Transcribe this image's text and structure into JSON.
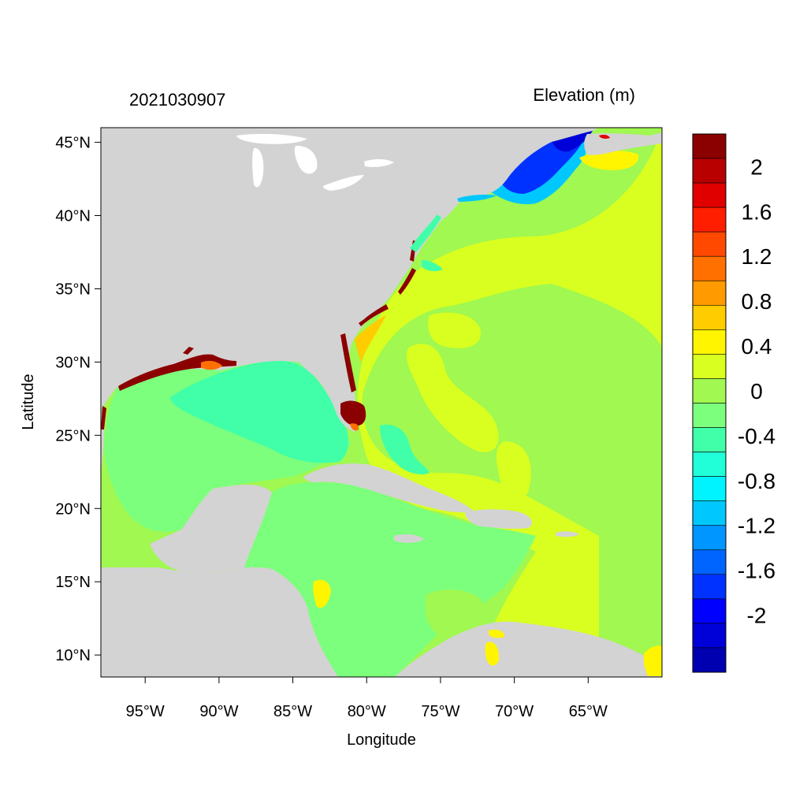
{
  "map": {
    "timestamp": "2021030907",
    "variable_title": "Elevation (m)",
    "x_axis_title": "Longitude",
    "y_axis_title": "Latitude",
    "lon_range": [
      -98,
      -60
    ],
    "lat_range": [
      8.5,
      46
    ],
    "lon_ticks": [
      {
        "value": -95,
        "label": "95°W"
      },
      {
        "value": -90,
        "label": "90°W"
      },
      {
        "value": -85,
        "label": "85°W"
      },
      {
        "value": -80,
        "label": "80°W"
      },
      {
        "value": -75,
        "label": "75°W"
      },
      {
        "value": -70,
        "label": "70°W"
      },
      {
        "value": -65,
        "label": "65°W"
      }
    ],
    "lat_ticks": [
      {
        "value": 45,
        "label": "45°N"
      },
      {
        "value": 40,
        "label": "40°N"
      },
      {
        "value": 35,
        "label": "35°N"
      },
      {
        "value": 30,
        "label": "30°N"
      },
      {
        "value": 25,
        "label": "25°N"
      },
      {
        "value": 20,
        "label": "20°N"
      },
      {
        "value": 15,
        "label": "15°N"
      },
      {
        "value": 10,
        "label": "10°N"
      }
    ],
    "land_color": "#d3d3d3",
    "ocean_base_color": "#a0f850",
    "colorbar": {
      "colors_top_to_bottom": [
        "#8b0000",
        "#b80000",
        "#e00000",
        "#ff1e00",
        "#ff4800",
        "#ff7000",
        "#ff9a00",
        "#ffcc00",
        "#fff500",
        "#d9ff20",
        "#a0f850",
        "#7cff7c",
        "#40ffa8",
        "#20ffd8",
        "#00f4ff",
        "#00c8ff",
        "#0096ff",
        "#0064ff",
        "#0032ff",
        "#0000ff",
        "#0000d8",
        "#0000b0"
      ],
      "labels": [
        {
          "value": 2,
          "text": "2"
        },
        {
          "value": 1.6,
          "text": "1.6"
        },
        {
          "value": 1.2,
          "text": "1.2"
        },
        {
          "value": 0.8,
          "text": "0.8"
        },
        {
          "value": 0.4,
          "text": "0.4"
        },
        {
          "value": 0,
          "text": "0"
        },
        {
          "value": -0.4,
          "text": "-0.4"
        },
        {
          "value": -0.8,
          "text": "-0.8"
        },
        {
          "value": -1.2,
          "text": "-1.2"
        },
        {
          "value": -1.6,
          "text": "-1.6"
        },
        {
          "value": -2,
          "text": "-2"
        }
      ]
    },
    "regions": [
      {
        "name": "gulf-of-mexico",
        "value": -0.2,
        "color": "#7cff7c"
      },
      {
        "name": "eastern-gulf-shelf",
        "value": -0.3,
        "color": "#40ffa8"
      },
      {
        "name": "caribbean-sea",
        "value": -0.1,
        "color": "#7cff7c"
      },
      {
        "name": "atlantic-offshore",
        "value": 0.1,
        "color": "#a0f850"
      },
      {
        "name": "atlantic-coastal-band",
        "value": 0.3,
        "color": "#d9ff20"
      },
      {
        "name": "gulf-of-maine",
        "value": -1.8,
        "color": "#0032ff"
      },
      {
        "name": "south-florida-surge",
        "value": 2.2,
        "color": "#8b0000"
      }
    ]
  }
}
